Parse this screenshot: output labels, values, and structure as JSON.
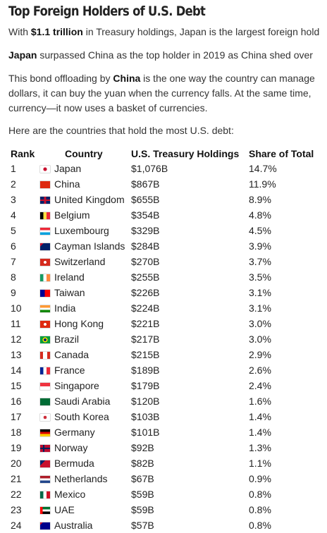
{
  "header": {
    "title": "Top Foreign Holders of U.S. Debt"
  },
  "intro": [
    [
      "With ",
      "$1.1 trillion",
      " in Treasury holdings, Japan is the largest foreign hold"
    ],
    [
      "Japan",
      " surpassed China as the top holder in 2019 as China shed over"
    ],
    [
      "This bond offloading by ",
      "China",
      " is the one way the country can manage"
    ],
    [
      "dollars, it can buy the yuan when the currency falls. At the same time,"
    ],
    [
      "currency—it now uses a basket of currencies."
    ],
    [
      "Here are the countries that hold the most U.S. debt:"
    ]
  ],
  "table": {
    "columns": [
      "Rank",
      "Country",
      "U.S. Treasury Holdings",
      "Share of Total"
    ],
    "rows": [
      [
        "1",
        "Japan",
        "$1,076B",
        "14.7%"
      ],
      [
        "2",
        "China",
        "$867B",
        "11.9%"
      ],
      [
        "3",
        "United Kingdom",
        "$655B",
        "8.9%"
      ],
      [
        "4",
        "Belgium",
        "$354B",
        "4.8%"
      ],
      [
        "5",
        "Luxembourg",
        "$329B",
        "4.5%"
      ],
      [
        "6",
        "Cayman Islands",
        "$284B",
        "3.9%"
      ],
      [
        "7",
        "Switzerland",
        "$270B",
        "3.7%"
      ],
      [
        "8",
        "Ireland",
        "$255B",
        "3.5%"
      ],
      [
        "9",
        "Taiwan",
        "$226B",
        "3.1%"
      ],
      [
        "10",
        "India",
        "$224B",
        "3.1%"
      ],
      [
        "11",
        "Hong Kong",
        "$221B",
        "3.0%"
      ],
      [
        "12",
        "Brazil",
        "$217B",
        "3.0%"
      ],
      [
        "13",
        "Canada",
        "$215B",
        "2.9%"
      ],
      [
        "14",
        "France",
        "$189B",
        "2.6%"
      ],
      [
        "15",
        "Singapore",
        "$179B",
        "2.4%"
      ],
      [
        "16",
        "Saudi Arabia",
        "$120B",
        "1.6%"
      ],
      [
        "17",
        "South Korea",
        "$103B",
        "1.4%"
      ],
      [
        "18",
        "Germany",
        "$101B",
        "1.4%"
      ],
      [
        "19",
        "Norway",
        "$92B",
        "1.3%"
      ],
      [
        "20",
        "Bermuda",
        "$82B",
        "1.1%"
      ],
      [
        "21",
        "Netherlands",
        "$67B",
        "0.9%"
      ],
      [
        "22",
        "Mexico",
        "$59B",
        "0.8%"
      ],
      [
        "23",
        "UAE",
        "$59B",
        "0.8%"
      ],
      [
        "24",
        "Australia",
        "$57B",
        "0.8%"
      ]
    ]
  }
}
